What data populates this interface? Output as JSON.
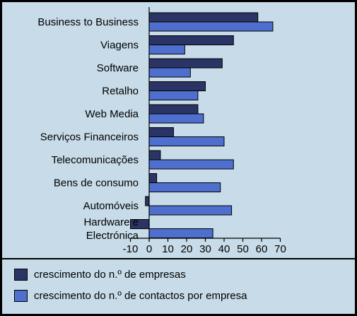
{
  "chart_data": {
    "type": "bar",
    "orientation": "horizontal",
    "categories": [
      "Business to Business",
      "Viagens",
      "Software",
      "Retalho",
      "Web Media",
      "Serviços Financeiros",
      "Telecomunicações",
      "Bens de consumo",
      "Automóveis",
      "Hardware e\nElectrónica"
    ],
    "series": [
      {
        "name": "crescimento do n.º de empresas",
        "color": "#2a3566",
        "values": [
          58,
          45,
          39,
          30,
          26,
          13,
          6,
          4,
          -2,
          -10
        ]
      },
      {
        "name": "crescimento do n.º de contactos por empresa",
        "color": "#4f6fcf",
        "values": [
          66,
          19,
          22,
          26,
          29,
          40,
          45,
          38,
          44,
          34
        ]
      }
    ],
    "xlim": [
      -10,
      70
    ],
    "xticks": [
      -10,
      0,
      10,
      20,
      30,
      40,
      50,
      60,
      70
    ],
    "legend_position": "bottom",
    "grid": false
  }
}
